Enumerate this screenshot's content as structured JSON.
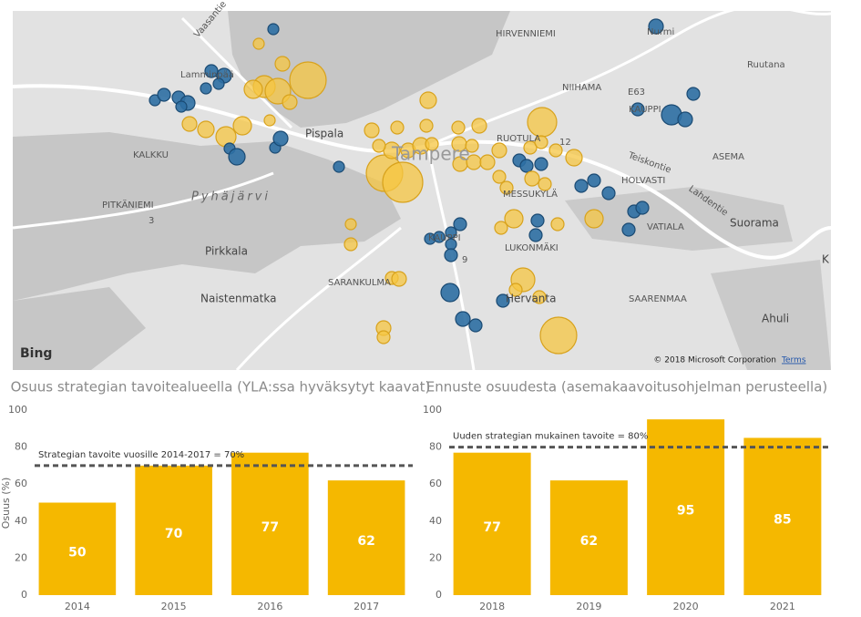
{
  "map": {
    "labels": [
      "Vaasantie",
      "Lamminpää",
      "HIRVENNIEMI",
      "Nurmi",
      "Ruutana",
      "NIIHAMA",
      "E63",
      "KAUPPI",
      "Pispala",
      "KALKKU",
      "Pyhäjärvi",
      "PITKÄNIEMI",
      "3",
      "Tampere",
      "RUOTULA",
      "12",
      "Teiskontie",
      "ASEMA",
      "HOLVASTI",
      "Lahdentie",
      "MESSUKYLÄ",
      "VATIALA",
      "Suorama",
      "Pirkkala",
      "KAUPPI",
      "LUKONMÄKI",
      "9",
      "SARANKULMA",
      "Naistenmatka",
      "Hervanta",
      "SAARENMAA",
      "Ahuli",
      "K"
    ],
    "logo": "Bing",
    "attribution": "© 2018 Microsoft Corporation",
    "terms": "Terms"
  },
  "chart_data": [
    {
      "type": "bar",
      "title": "Osuus strategian tavoitealueella (YLA:ssa hyväksytyt kaavat)",
      "y_label": "Osuus (%)",
      "categories": [
        "2014",
        "2015",
        "2016",
        "2017"
      ],
      "values": [
        50,
        70,
        77,
        62
      ],
      "color": "#f5b800",
      "ylim": [
        0,
        100
      ],
      "yticks": [
        0,
        20,
        40,
        60,
        80,
        100
      ],
      "target": {
        "value": 70,
        "label": "Strategian tavoite vuosille 2014-2017 = 70%"
      }
    },
    {
      "type": "bar",
      "title": "Ennuste osuudesta (asemakaavoitusohjelman perusteella)",
      "categories": [
        "2018",
        "2019",
        "2020",
        "2021"
      ],
      "values": [
        77,
        62,
        95,
        85
      ],
      "color": "#f5b800",
      "ylim": [
        0,
        100
      ],
      "yticks": [
        0,
        20,
        40,
        60,
        80,
        100
      ],
      "target": {
        "value": 80,
        "label": "Uuden strategian mukainen tavoite = 80%"
      }
    }
  ]
}
